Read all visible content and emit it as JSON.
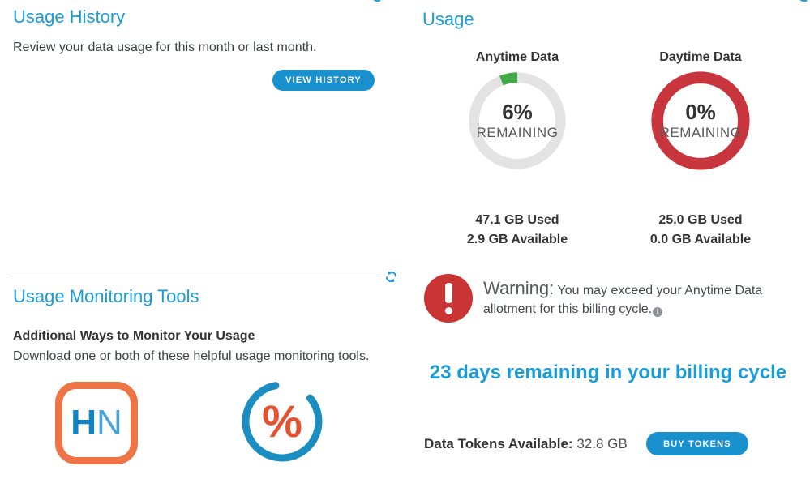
{
  "colors": {
    "brand_blue": "#1a9cd8",
    "button_blue": "#1991ce",
    "alert_red": "#ca3435",
    "remaining_green": "#43a848",
    "track_gray": "#e3e3e3",
    "hn_orange": "#ef7445",
    "percent_icon_blue": "#1b8dc0",
    "percent_icon_orange": "#e5502f"
  },
  "left_panel": {
    "history": {
      "title": "Usage History",
      "description": "Review your data usage for this month or last month.",
      "button_label": "VIEW HISTORY"
    },
    "monitoring": {
      "title": "Usage Monitoring Tools",
      "subtitle": "Additional Ways to Monitor Your Usage",
      "description": "Download one or both of these helpful usage monitoring tools.",
      "hn_app_letters": {
        "h": "H",
        "n": "N"
      },
      "percent_symbol": "%"
    }
  },
  "right_panel": {
    "title": "Usage",
    "meters": [
      {
        "label": "Anytime Data",
        "percent_text": "6%",
        "percent_value": 6,
        "remaining_label": "REMAINING",
        "used": "47.1 GB Used",
        "available": "2.9 GB Available",
        "track_color": "#e3e3e3",
        "arc_color": "#43a848",
        "stroke": 13
      },
      {
        "label": "Daytime Data",
        "percent_text": "0%",
        "percent_value": 0,
        "remaining_label": "REMAINING",
        "used": "25.0 GB Used",
        "available": "0.0 GB Available",
        "track_color": "#c9353c",
        "arc_color": "#43a848",
        "stroke": 15
      }
    ],
    "warning": {
      "prefix": "Warning:",
      "message": " You may exceed your Anytime Data allotment for this billing cycle.",
      "info_icon": "i"
    },
    "billing_cycle_message": "23 days remaining in your billing cycle",
    "tokens": {
      "label": "Data Tokens Available:",
      "value": " 32.8 GB",
      "button_label": "BUY TOKENS"
    }
  }
}
